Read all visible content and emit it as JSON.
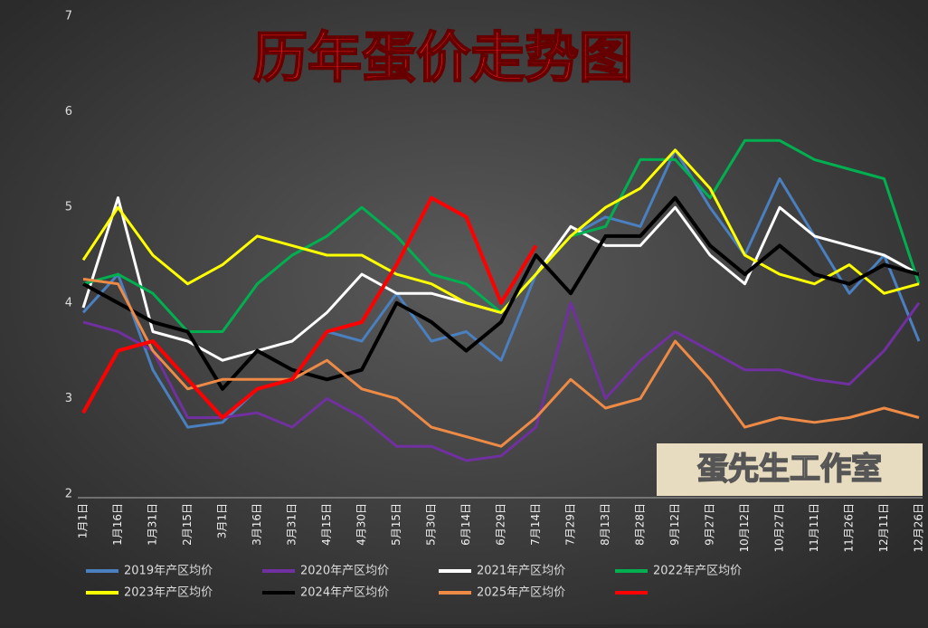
{
  "chart_data": {
    "type": "line",
    "title": "历年蛋价走势图",
    "watermark": "蛋先生工作室",
    "categories": [
      "1月1日",
      "1月16日",
      "1月31日",
      "2月15日",
      "3月1日",
      "3月16日",
      "3月31日",
      "4月15日",
      "4月30日",
      "5月15日",
      "5月30日",
      "6月14日",
      "6月29日",
      "7月14日",
      "7月29日",
      "8月13日",
      "8月28日",
      "9月12日",
      "9月27日",
      "10月12日",
      "10月27日",
      "11月11日",
      "11月26日",
      "12月11日",
      "12月26日"
    ],
    "ylim": [
      2,
      7
    ],
    "yticks": [
      2,
      3,
      4,
      5,
      6,
      7
    ],
    "grid": false,
    "series": [
      {
        "name": "2019年产区均价",
        "color": "#4a7fc0",
        "values": [
          3.9,
          4.3,
          3.3,
          2.7,
          2.75,
          3.1,
          3.2,
          3.7,
          3.6,
          4.1,
          3.6,
          3.7,
          3.4,
          4.3,
          4.7,
          4.9,
          4.8,
          5.6,
          5.0,
          4.5,
          5.3,
          4.7,
          4.1,
          4.5,
          3.6
        ]
      },
      {
        "name": "2020年产区均价",
        "color": "#7030a0",
        "values": [
          3.8,
          3.7,
          3.5,
          2.8,
          2.8,
          2.85,
          2.7,
          3.0,
          2.8,
          2.5,
          2.5,
          2.35,
          2.4,
          2.7,
          4.0,
          3.0,
          3.4,
          3.7,
          3.5,
          3.3,
          3.3,
          3.2,
          3.15,
          3.5,
          4.0
        ]
      },
      {
        "name": "2021年产区均价",
        "color": "#ffffff",
        "values": [
          3.95,
          5.1,
          3.7,
          3.6,
          3.4,
          3.5,
          3.6,
          3.9,
          4.3,
          4.1,
          4.1,
          4.0,
          3.9,
          4.3,
          4.8,
          4.6,
          4.6,
          5.0,
          4.5,
          4.2,
          5.0,
          4.7,
          4.6,
          4.5,
          4.3
        ]
      },
      {
        "name": "2022年产区均价",
        "color": "#00b050",
        "values": [
          4.2,
          4.3,
          4.1,
          3.7,
          3.7,
          4.2,
          4.5,
          4.7,
          5.0,
          4.7,
          4.3,
          4.2,
          3.9,
          4.3,
          4.7,
          4.8,
          5.5,
          5.5,
          5.1,
          5.7,
          5.7,
          5.5,
          5.4,
          5.3,
          4.2
        ]
      },
      {
        "name": "2023年产区均价",
        "color": "#ffff00",
        "values": [
          4.45,
          5.0,
          4.5,
          4.2,
          4.4,
          4.7,
          4.6,
          4.5,
          4.5,
          4.3,
          4.2,
          4.0,
          3.9,
          4.3,
          4.7,
          5.0,
          5.2,
          5.6,
          5.2,
          4.5,
          4.3,
          4.2,
          4.4,
          4.1,
          4.2
        ]
      },
      {
        "name": "2024年产区均价",
        "color": "#000000",
        "values": [
          4.2,
          4.0,
          3.8,
          3.7,
          3.1,
          3.5,
          3.3,
          3.2,
          3.3,
          4.0,
          3.8,
          3.5,
          3.8,
          4.5,
          4.1,
          4.7,
          4.7,
          5.1,
          4.6,
          4.3,
          4.6,
          4.3,
          4.2,
          4.4,
          4.3
        ]
      },
      {
        "name": "2025年产区均价",
        "color": "#ed8a45",
        "values": [
          4.25,
          4.2,
          3.5,
          3.1,
          3.2,
          3.2,
          3.2,
          3.4,
          3.1,
          3.0,
          2.7,
          2.6,
          2.5,
          2.8,
          3.2,
          2.9,
          3.0,
          3.6,
          3.2,
          2.7,
          2.8,
          2.75,
          2.8,
          2.9,
          2.8
        ]
      },
      {
        "color": "#ff0000",
        "values": [
          2.85,
          3.5,
          3.6,
          3.2,
          2.8,
          3.1,
          3.2,
          3.7,
          3.8,
          4.4,
          5.1,
          4.9,
          4.0,
          4.6,
          null,
          null,
          null,
          null,
          null,
          null,
          null,
          null,
          null,
          null,
          null
        ]
      }
    ]
  }
}
